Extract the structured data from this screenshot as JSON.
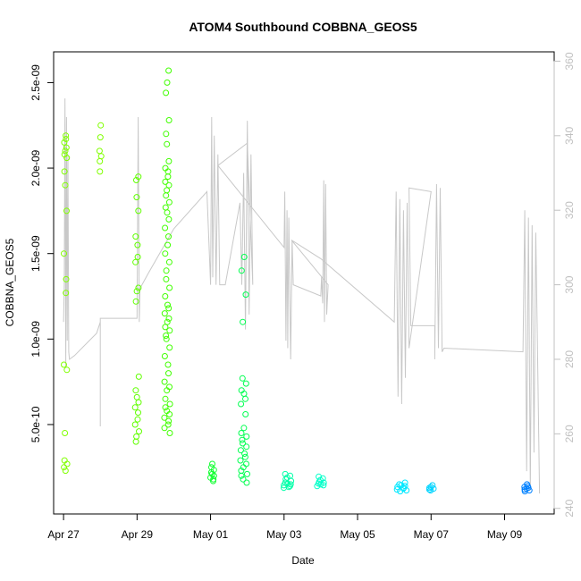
{
  "chart_data": {
    "type": "scatter",
    "title": "ATOM4 Southbound COBBNA_GEOS5",
    "xlabel": "Date",
    "ylabel": "COBBNA_GEOS5",
    "x_ticks": [
      {
        "label": "Apr 27",
        "day": 0
      },
      {
        "label": "Apr 29",
        "day": 2
      },
      {
        "label": "May 01",
        "day": 4
      },
      {
        "label": "May 03",
        "day": 6
      },
      {
        "label": "May 05",
        "day": 8
      },
      {
        "label": "May 07",
        "day": 10
      },
      {
        "label": "May 09",
        "day": 12
      }
    ],
    "xlim_days": [
      -0.27,
      13.35
    ],
    "ylim": [
      -2.3e-11,
      2.68e-09
    ],
    "y_ticks": [
      {
        "label": "5.0e-10",
        "value": 5e-10
      },
      {
        "label": "1.0e-09",
        "value": 1e-09
      },
      {
        "label": "1.5e-09",
        "value": 1.5e-09
      },
      {
        "label": "2.0e-09",
        "value": 2e-09
      },
      {
        "label": "2.5e-09",
        "value": 2.5e-09
      }
    ],
    "right_axis": {
      "ylim": [
        238.5,
        362.5
      ],
      "ticks": [
        {
          "label": "240",
          "value": 240
        },
        {
          "label": "260",
          "value": 260
        },
        {
          "label": "280",
          "value": 280
        },
        {
          "label": "300",
          "value": 300
        },
        {
          "label": "320",
          "value": 320
        },
        {
          "label": "340",
          "value": 340
        },
        {
          "label": "360",
          "value": 360
        }
      ]
    },
    "series": [
      {
        "name": "COBBNA_GEOS5",
        "style": "open circles, colored by date",
        "clusters": [
          {
            "day": 0.05,
            "spread": 0.05,
            "color": "#80ff00",
            "values": [
              2.19e-09,
              2.17e-09,
              2.15e-09,
              2.12e-09,
              2.1e-09,
              2.08e-09,
              2.06e-09,
              1.98e-09,
              1.9e-09,
              1.75e-09,
              1.5e-09,
              1.35e-09,
              1.27e-09,
              8.5e-10,
              8.2e-10,
              4.5e-10,
              2.9e-10,
              2.7e-10,
              2.5e-10,
              2.3e-10
            ]
          },
          {
            "day": 1.0,
            "spread": 0.03,
            "color": "#80ff00",
            "values": [
              2.25e-09,
              2.18e-09,
              2.1e-09,
              2.07e-09,
              2.04e-09,
              1.98e-09
            ]
          },
          {
            "day": 2.0,
            "spread": 0.06,
            "color": "#60ff00",
            "values": [
              1.95e-09,
              1.93e-09,
              1.83e-09,
              1.75e-09,
              1.6e-09,
              1.55e-09,
              1.48e-09,
              1.45e-09,
              1.3e-09,
              1.28e-09,
              1.22e-09,
              7.8e-10,
              7e-10,
              6.6e-10,
              6.3e-10,
              6e-10,
              5.7e-10,
              5.3e-10,
              5e-10,
              4.6e-10,
              4.3e-10,
              4e-10
            ]
          },
          {
            "day": 2.82,
            "spread": 0.08,
            "color": "#40ff00",
            "values": [
              2.57e-09,
              2.5e-09,
              2.44e-09,
              2.28e-09,
              2.2e-09,
              2.14e-09,
              2.04e-09,
              2e-09,
              1.98e-09,
              1.95e-09,
              1.92e-09,
              1.9e-09,
              1.87e-09,
              1.84e-09,
              1.8e-09,
              1.77e-09,
              1.74e-09,
              1.7e-09,
              1.65e-09,
              1.6e-09,
              1.55e-09,
              1.5e-09,
              1.45e-09,
              1.4e-09,
              1.35e-09,
              1.3e-09,
              1.25e-09,
              1.2e-09,
              1.18e-09,
              1.15e-09,
              1.12e-09,
              1.1e-09,
              1.07e-09,
              1.05e-09,
              1.02e-09,
              1e-09,
              9.5e-10,
              9e-10,
              8.5e-10,
              8e-10,
              7.5e-10,
              7.2e-10,
              7e-10,
              6.5e-10,
              6.2e-10,
              6e-10,
              5.8e-10,
              5.6e-10,
              5.4e-10,
              5.2e-10,
              5e-10,
              4.8e-10,
              4.5e-10
            ]
          },
          {
            "day": 4.05,
            "spread": 0.06,
            "color": "#10ff30",
            "values": [
              2.7e-10,
              2.5e-10,
              2.35e-10,
              2.2e-10,
              2.1e-10,
              2e-10,
              1.9e-10,
              1.8e-10,
              1.7e-10
            ]
          },
          {
            "day": 4.9,
            "spread": 0.1,
            "color": "#00ff50",
            "values": [
              1.48e-09,
              1.4e-09,
              1.26e-09,
              1.1e-09,
              7.7e-10,
              7.4e-10,
              7e-10,
              6.8e-10,
              6.5e-10,
              6.2e-10,
              5.6e-10,
              4.8e-10,
              4.5e-10,
              4.3e-10,
              4.1e-10,
              3.9e-10,
              3.7e-10,
              3.5e-10,
              3.3e-10,
              3.1e-10,
              2.9e-10,
              2.7e-10,
              2.5e-10,
              2.3e-10,
              2.1e-10,
              2e-10,
              1.8e-10,
              1.6e-10
            ]
          },
          {
            "day": 6.1,
            "spread": 0.12,
            "color": "#00ffa8",
            "values": [
              2.1e-10,
              2e-10,
              1.9e-10,
              1.8e-10,
              1.7e-10,
              1.6e-10,
              1.55e-10,
              1.5e-10,
              1.45e-10,
              1.4e-10,
              1.35e-10,
              1.3e-10
            ]
          },
          {
            "day": 7.0,
            "spread": 0.1,
            "color": "#00ffc8",
            "values": [
              1.95e-10,
              1.85e-10,
              1.75e-10,
              1.65e-10,
              1.6e-10,
              1.55e-10,
              1.5e-10,
              1.45e-10,
              1.4e-10
            ]
          },
          {
            "day": 9.2,
            "spread": 0.15,
            "color": "#00e8ff",
            "values": [
              1.6e-10,
              1.5e-10,
              1.45e-10,
              1.4e-10,
              1.35e-10,
              1.3e-10,
              1.25e-10,
              1.2e-10,
              1.15e-10,
              1.1e-10
            ]
          },
          {
            "day": 10.0,
            "spread": 0.08,
            "color": "#00d4ff",
            "values": [
              1.45e-10,
              1.35e-10,
              1.3e-10,
              1.25e-10,
              1.2e-10,
              1.15e-10
            ]
          },
          {
            "day": 12.6,
            "spread": 0.08,
            "color": "#0080ff",
            "values": [
              1.5e-10,
              1.4e-10,
              1.35e-10,
              1.3e-10,
              1.25e-10,
              1.2e-10,
              1.15e-10,
              1.1e-10
            ]
          }
        ]
      },
      {
        "name": "right-axis trace",
        "style": "gray line",
        "color": "#c8c8c8",
        "points": [
          [
            0.0,
            290
          ],
          [
            0.02,
            300
          ],
          [
            0.04,
            350
          ],
          [
            0.06,
            278
          ],
          [
            0.08,
            345
          ],
          [
            0.1,
            285
          ],
          [
            0.12,
            335
          ],
          [
            0.14,
            282
          ],
          [
            0.16,
            280
          ],
          [
            0.3,
            281
          ],
          [
            0.9,
            287
          ],
          [
            1.0,
            290
          ],
          [
            1.0,
            270
          ],
          [
            1.0,
            262
          ],
          [
            1.0,
            291
          ],
          [
            2.0,
            291
          ],
          [
            2.03,
            345
          ],
          [
            2.06,
            290
          ],
          [
            2.08,
            299
          ],
          [
            2.3,
            303
          ],
          [
            3.0,
            315
          ],
          [
            3.9,
            325
          ],
          [
            4.0,
            300
          ],
          [
            4.03,
            345
          ],
          [
            4.06,
            302
          ],
          [
            4.1,
            340
          ],
          [
            4.15,
            300
          ],
          [
            4.2,
            335
          ],
          [
            4.25,
            300
          ],
          [
            4.3,
            300
          ],
          [
            4.4,
            300
          ],
          [
            4.8,
            322
          ],
          [
            4.85,
            300
          ],
          [
            4.9,
            330
          ],
          [
            4.95,
            288
          ],
          [
            5.0,
            344
          ],
          [
            5.05,
            292
          ],
          [
            5.1,
            335
          ],
          [
            5.15,
            300
          ],
          [
            5.0,
            338
          ],
          [
            4.2,
            332
          ],
          [
            6.0,
            310
          ],
          [
            6.02,
            325
          ],
          [
            6.05,
            285
          ],
          [
            6.08,
            320
          ],
          [
            6.1,
            283
          ],
          [
            6.13,
            318
          ],
          [
            6.18,
            280
          ],
          [
            6.22,
            312
          ],
          [
            6.25,
            300
          ],
          [
            7.0,
            297
          ],
          [
            7.02,
            302
          ],
          [
            7.05,
            295
          ],
          [
            7.08,
            328
          ],
          [
            7.1,
            290
          ],
          [
            7.13,
            327
          ],
          [
            7.16,
            292
          ],
          [
            7.2,
            300
          ],
          [
            6.2,
            312
          ],
          [
            7.0,
            307
          ],
          [
            9.0,
            290
          ],
          [
            9.05,
            325
          ],
          [
            9.1,
            270
          ],
          [
            9.15,
            323
          ],
          [
            9.2,
            268
          ],
          [
            9.25,
            320
          ],
          [
            9.3,
            275
          ],
          [
            9.35,
            322
          ],
          [
            9.4,
            283
          ],
          [
            10.0,
            325
          ],
          [
            9.4,
            326
          ],
          [
            9.45,
            289
          ],
          [
            10.1,
            289
          ],
          [
            10.1,
            280
          ],
          [
            10.15,
            327
          ],
          [
            10.2,
            283
          ],
          [
            10.25,
            326
          ],
          [
            10.3,
            282
          ],
          [
            10.35,
            283
          ],
          [
            12.5,
            282
          ],
          [
            12.55,
            320
          ],
          [
            12.6,
            250
          ],
          [
            12.65,
            318
          ],
          [
            12.7,
            245
          ],
          [
            12.75,
            316
          ],
          [
            12.8,
            255
          ],
          [
            12.85,
            314
          ],
          [
            12.9,
            280
          ],
          [
            12.95,
            244
          ]
        ]
      }
    ]
  }
}
